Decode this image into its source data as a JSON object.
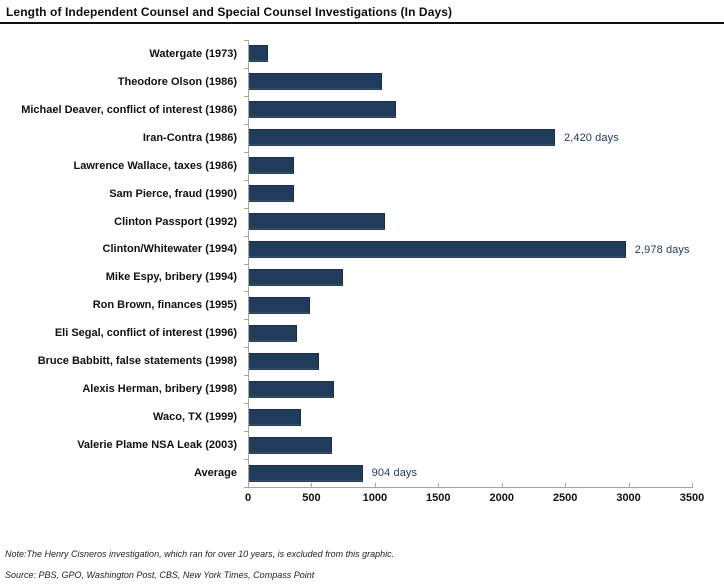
{
  "title": "Length of Independent Counsel and Special Counsel Investigations (In Days)",
  "note": "Note:The Henry Cisneros investigation, which ran for over 10 years, is excluded from this graphic.",
  "source": "Source: PBS, GPO, Washington Post, CBS, New York Times, Compass Point",
  "colors": {
    "bar": "#1f3c5b",
    "axis": "#a6a6a6",
    "annotation": "#1e3a57",
    "text": "#111111"
  },
  "chart_data": {
    "type": "bar",
    "orientation": "horizontal",
    "title": "Length of Independent Counsel and Special Counsel Investigations (In Days)",
    "xlabel": "",
    "ylabel": "",
    "xlim": [
      0,
      3500
    ],
    "xticks": [
      0,
      500,
      1000,
      1500,
      2000,
      2500,
      3000,
      3500
    ],
    "grid": false,
    "legend": false,
    "categories": [
      "Watergate (1973)",
      "Theodore Olson (1986)",
      "Michael Deaver, conflict of interest (1986)",
      "Iran-Contra (1986)",
      "Lawrence Wallace, taxes (1986)",
      "Sam Pierce, fraud (1990)",
      "Clinton Passport (1992)",
      "Clinton/Whitewater (1994)",
      "Mike Espy, bribery (1994)",
      "Ron Brown, finances (1995)",
      "Eli Segal, conflict of interest (1996)",
      "Bruce Babbitt, false statements (1998)",
      "Alexis Herman, bribery (1998)",
      "Waco, TX (1999)",
      "Valerie Plame NSA Leak (2003)",
      "Average"
    ],
    "values": [
      160,
      1060,
      1170,
      2420,
      365,
      365,
      1080,
      2978,
      750,
      490,
      385,
      560,
      675,
      420,
      665,
      904
    ],
    "data_labels": [
      "",
      "",
      "",
      "2,420 days",
      "",
      "",
      "",
      "2,978 days",
      "",
      "",
      "",
      "",
      "",
      "",
      "",
      "904 days"
    ]
  }
}
